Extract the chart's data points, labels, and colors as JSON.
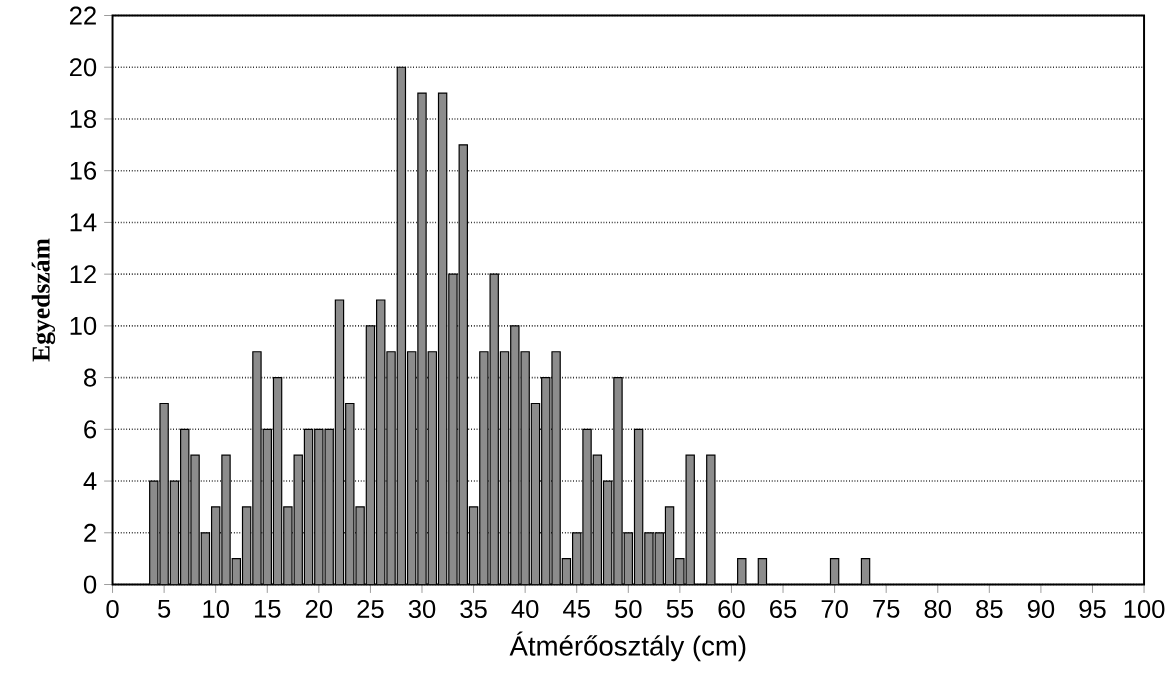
{
  "chart_data": {
    "type": "bar",
    "xlabel": "Átmérőosztály (cm)",
    "ylabel": "Egyedszám",
    "x": [
      4,
      5,
      6,
      7,
      8,
      9,
      10,
      11,
      12,
      13,
      14,
      15,
      16,
      17,
      18,
      19,
      20,
      21,
      22,
      23,
      24,
      25,
      26,
      27,
      28,
      29,
      30,
      31,
      32,
      33,
      34,
      35,
      36,
      37,
      38,
      39,
      40,
      41,
      42,
      43,
      44,
      45,
      46,
      47,
      48,
      49,
      50,
      51,
      52,
      53,
      54,
      55,
      56,
      58,
      61,
      63,
      70,
      73
    ],
    "values": [
      4,
      7,
      4,
      6,
      5,
      2,
      3,
      5,
      1,
      3,
      9,
      6,
      8,
      3,
      5,
      6,
      6,
      6,
      11,
      7,
      3,
      10,
      11,
      9,
      20,
      9,
      19,
      9,
      19,
      12,
      17,
      3,
      9,
      12,
      9,
      10,
      9,
      7,
      8,
      9,
      1,
      2,
      6,
      5,
      4,
      8,
      2,
      6,
      2,
      2,
      3,
      1,
      5,
      5,
      1,
      1,
      1,
      1
    ],
    "color": "#8c8c8c",
    "xlim": [
      0,
      100
    ],
    "xticks": [
      0,
      5,
      10,
      15,
      20,
      25,
      30,
      35,
      40,
      45,
      50,
      55,
      60,
      65,
      70,
      75,
      80,
      85,
      90,
      95,
      100
    ],
    "ylim": [
      0,
      22
    ],
    "yticks": [
      0,
      2,
      4,
      6,
      8,
      10,
      12,
      14,
      16,
      18,
      20,
      22
    ],
    "grid": "y"
  }
}
